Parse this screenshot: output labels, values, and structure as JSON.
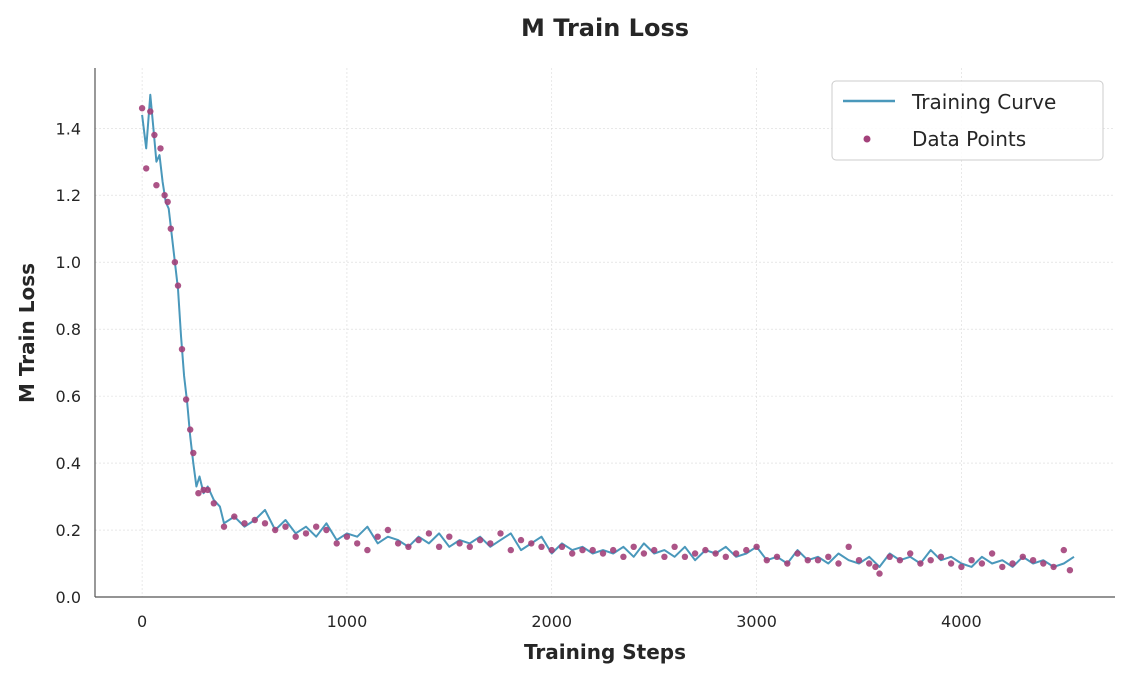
{
  "chart_data": {
    "type": "line",
    "title": "M Train Loss",
    "xlabel": "Training Steps",
    "ylabel": "M Train Loss",
    "xlim": [
      -230,
      4750
    ],
    "ylim": [
      0,
      1.58
    ],
    "xticks": [
      0,
      1000,
      2000,
      3000,
      4000
    ],
    "yticks": [
      0.0,
      0.2,
      0.4,
      0.6,
      0.8,
      1.0,
      1.2,
      1.4
    ],
    "grid": true,
    "legend_position": "top-right",
    "colors": {
      "line": "#4a98bb",
      "points": "#a3417a"
    },
    "series": [
      {
        "name": "Training Curve",
        "kind": "line",
        "x": [
          0,
          20,
          40,
          55,
          70,
          85,
          100,
          115,
          130,
          145,
          160,
          175,
          190,
          205,
          220,
          235,
          250,
          265,
          280,
          300,
          320,
          350,
          380,
          400,
          450,
          500,
          550,
          600,
          650,
          700,
          750,
          800,
          850,
          900,
          950,
          1000,
          1050,
          1100,
          1150,
          1200,
          1250,
          1300,
          1350,
          1400,
          1450,
          1500,
          1550,
          1600,
          1650,
          1700,
          1750,
          1800,
          1850,
          1900,
          1950,
          2000,
          2050,
          2100,
          2150,
          2200,
          2250,
          2300,
          2350,
          2400,
          2450,
          2500,
          2550,
          2600,
          2650,
          2700,
          2750,
          2800,
          2850,
          2900,
          2950,
          3000,
          3050,
          3100,
          3150,
          3200,
          3250,
          3300,
          3350,
          3400,
          3450,
          3500,
          3550,
          3600,
          3650,
          3700,
          3750,
          3800,
          3850,
          3900,
          3950,
          4000,
          4050,
          4100,
          4150,
          4200,
          4250,
          4300,
          4350,
          4400,
          4450,
          4500,
          4550
        ],
        "y": [
          1.44,
          1.34,
          1.5,
          1.4,
          1.3,
          1.32,
          1.24,
          1.18,
          1.16,
          1.08,
          1.0,
          0.92,
          0.78,
          0.66,
          0.58,
          0.48,
          0.4,
          0.33,
          0.36,
          0.31,
          0.33,
          0.29,
          0.27,
          0.22,
          0.24,
          0.21,
          0.23,
          0.26,
          0.2,
          0.23,
          0.19,
          0.21,
          0.18,
          0.22,
          0.17,
          0.19,
          0.18,
          0.21,
          0.16,
          0.18,
          0.17,
          0.15,
          0.18,
          0.16,
          0.19,
          0.15,
          0.17,
          0.16,
          0.18,
          0.15,
          0.17,
          0.19,
          0.14,
          0.16,
          0.18,
          0.13,
          0.16,
          0.14,
          0.15,
          0.13,
          0.14,
          0.13,
          0.15,
          0.12,
          0.16,
          0.13,
          0.14,
          0.12,
          0.15,
          0.11,
          0.14,
          0.13,
          0.15,
          0.12,
          0.13,
          0.15,
          0.11,
          0.12,
          0.1,
          0.14,
          0.11,
          0.12,
          0.1,
          0.13,
          0.11,
          0.1,
          0.12,
          0.09,
          0.13,
          0.11,
          0.12,
          0.1,
          0.14,
          0.11,
          0.12,
          0.1,
          0.09,
          0.12,
          0.1,
          0.11,
          0.09,
          0.12,
          0.1,
          0.11,
          0.09,
          0.1,
          0.12
        ]
      },
      {
        "name": "Data Points",
        "kind": "scatter",
        "x": [
          0,
          20,
          40,
          60,
          70,
          90,
          110,
          125,
          140,
          160,
          175,
          195,
          215,
          235,
          250,
          275,
          300,
          320,
          350,
          400,
          450,
          500,
          550,
          600,
          650,
          700,
          750,
          800,
          850,
          900,
          950,
          1000,
          1050,
          1100,
          1150,
          1200,
          1250,
          1300,
          1350,
          1400,
          1450,
          1500,
          1550,
          1600,
          1650,
          1700,
          1750,
          1800,
          1850,
          1900,
          1950,
          2000,
          2050,
          2100,
          2150,
          2200,
          2250,
          2300,
          2350,
          2400,
          2450,
          2500,
          2550,
          2600,
          2650,
          2700,
          2750,
          2800,
          2850,
          2900,
          2950,
          3000,
          3050,
          3100,
          3150,
          3200,
          3250,
          3300,
          3350,
          3400,
          3450,
          3500,
          3550,
          3580,
          3600,
          3650,
          3700,
          3750,
          3800,
          3850,
          3900,
          3950,
          4000,
          4050,
          4100,
          4150,
          4200,
          4250,
          4300,
          4350,
          4400,
          4450,
          4500,
          4530
        ],
        "y": [
          1.46,
          1.28,
          1.45,
          1.38,
          1.23,
          1.34,
          1.2,
          1.18,
          1.1,
          1.0,
          0.93,
          0.74,
          0.59,
          0.5,
          0.43,
          0.31,
          0.32,
          0.32,
          0.28,
          0.21,
          0.24,
          0.22,
          0.23,
          0.22,
          0.2,
          0.21,
          0.18,
          0.19,
          0.21,
          0.2,
          0.16,
          0.18,
          0.16,
          0.14,
          0.18,
          0.2,
          0.16,
          0.15,
          0.17,
          0.19,
          0.15,
          0.18,
          0.16,
          0.15,
          0.17,
          0.16,
          0.19,
          0.14,
          0.17,
          0.16,
          0.15,
          0.14,
          0.15,
          0.13,
          0.14,
          0.14,
          0.13,
          0.14,
          0.12,
          0.15,
          0.13,
          0.14,
          0.12,
          0.15,
          0.12,
          0.13,
          0.14,
          0.13,
          0.12,
          0.13,
          0.14,
          0.15,
          0.11,
          0.12,
          0.1,
          0.13,
          0.11,
          0.11,
          0.12,
          0.1,
          0.15,
          0.11,
          0.1,
          0.09,
          0.07,
          0.12,
          0.11,
          0.13,
          0.1,
          0.11,
          0.12,
          0.1,
          0.09,
          0.11,
          0.1,
          0.13,
          0.09,
          0.1,
          0.12,
          0.11,
          0.1,
          0.09,
          0.14,
          0.08
        ]
      }
    ]
  }
}
